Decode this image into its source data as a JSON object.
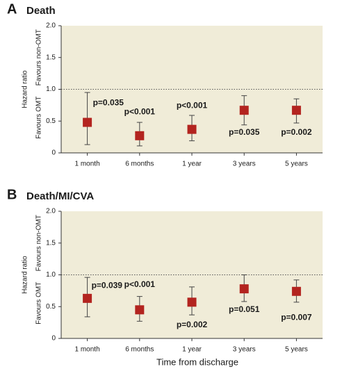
{
  "chart_data": [
    {
      "type": "errorbar",
      "panel": "A",
      "title": "Death",
      "y_label": "Hazard ratio",
      "y_label_upper": "Favours non-OMT",
      "y_label_lower": "Favours OMT",
      "categories": [
        "1 month",
        "6 months",
        "1 year",
        "3 years",
        "5 years"
      ],
      "values": [
        0.48,
        0.27,
        0.37,
        0.67,
        0.67
      ],
      "lower": [
        0.13,
        0.11,
        0.19,
        0.44,
        0.47
      ],
      "upper": [
        0.95,
        0.48,
        0.59,
        0.9,
        0.85
      ],
      "annotations": [
        "p=0.035",
        "p<0.001",
        "p<0.001",
        "p=0.035",
        "p=0.002"
      ],
      "color": "#b3241f",
      "reference_line": {
        "value": 1,
        "label": "1.0"
      },
      "ylim": [
        0,
        2
      ],
      "yticks": [
        0,
        0.5,
        {
          "value": 1,
          "label": "1.0"
        },
        {
          "value": 1.5,
          "label": "1.5"
        },
        {
          "value": 2,
          "label": "2.0"
        }
      ]
    },
    {
      "type": "errorbar",
      "panel": "B",
      "title": "Death/MI/CVA",
      "y_label": "Hazard ratio",
      "y_label_upper": "Favours non-OMT",
      "y_label_lower": "Favours OMT",
      "x_label": "Time from discharge",
      "categories": [
        "1 month",
        "6 months",
        "1 year",
        "3 years",
        "5 years"
      ],
      "values": [
        0.63,
        0.45,
        0.57,
        0.78,
        0.74
      ],
      "lower": [
        0.34,
        0.27,
        0.37,
        0.58,
        0.57
      ],
      "upper": [
        0.96,
        0.66,
        0.81,
        1.0,
        0.92
      ],
      "annotations": [
        "p=0.039",
        "p<0.001",
        "p=0.002",
        "p=0.051",
        "p=0.007"
      ],
      "color": "#b3241f",
      "reference_line": {
        "value": 1,
        "label": "1.0"
      },
      "ylim": [
        0,
        2
      ],
      "yticks": [
        0,
        0.5,
        {
          "value": 1,
          "label": "1.0"
        },
        {
          "value": 1.5,
          "label": "1.5"
        },
        {
          "value": 2,
          "label": "2.0"
        }
      ]
    }
  ]
}
